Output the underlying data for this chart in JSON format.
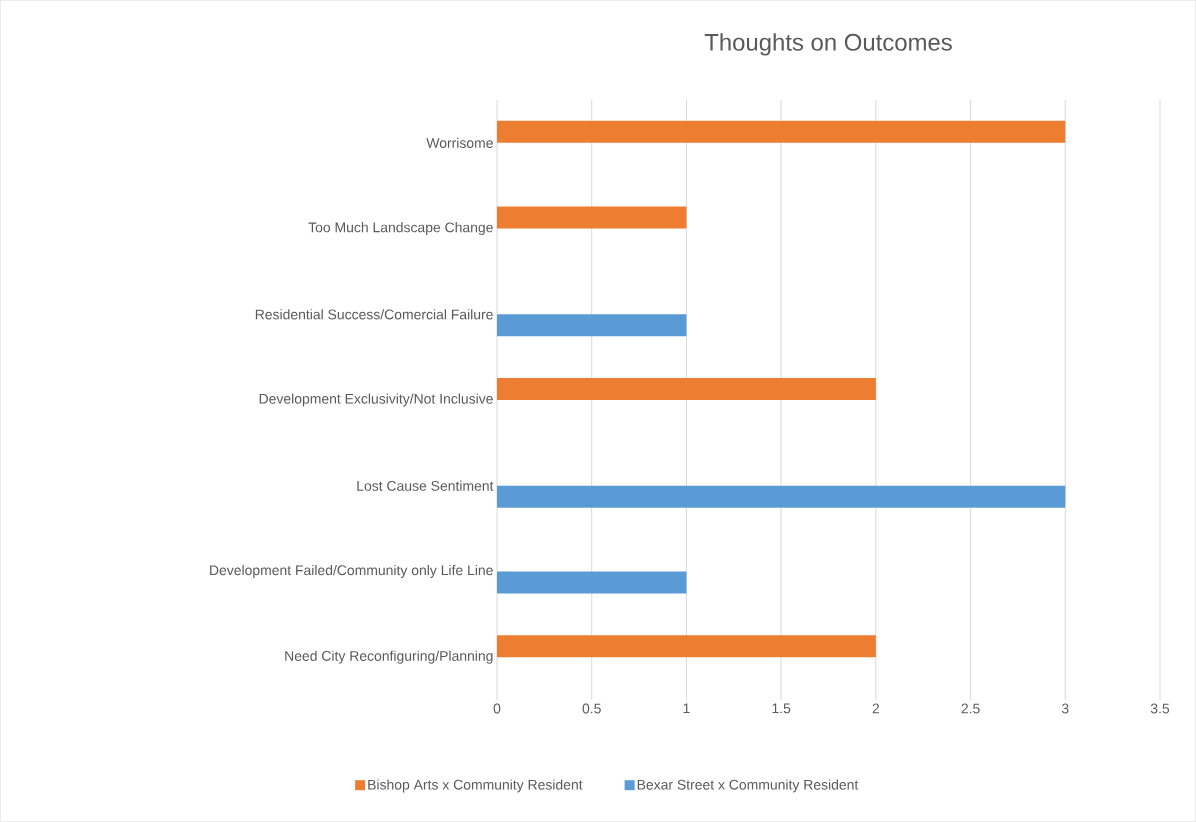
{
  "chart_data": {
    "type": "bar",
    "orientation": "horizontal",
    "title": "Thoughts on Outcomes",
    "categories": [
      "Worrisome",
      "Too Much Landscape Change",
      "Residential Success/Comercial Failure",
      "Development Exclusivity/Not Inclusive",
      "Lost Cause Sentiment",
      "Development Failed/Community only Life Line",
      "Need City Reconfiguring/Planning"
    ],
    "series": [
      {
        "name": "Bishop Arts x Community Resident",
        "color": "#ed7d31",
        "values": [
          3,
          1,
          null,
          2,
          null,
          null,
          2
        ]
      },
      {
        "name": "Bexar Street  x Community Resident",
        "color": "#5b9bd5",
        "values": [
          null,
          null,
          1,
          null,
          3,
          1,
          null
        ]
      }
    ],
    "xlim": [
      0,
      3.5
    ],
    "xticks": [
      0,
      0.5,
      1,
      1.5,
      2,
      2.5,
      3,
      3.5
    ],
    "grid": "x",
    "legend": "bottom"
  }
}
